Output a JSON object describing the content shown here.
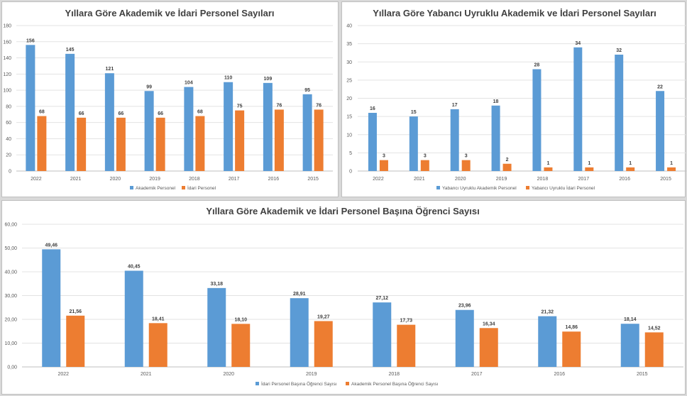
{
  "chart_data": [
    {
      "type": "bar",
      "title": "Yıllara Göre Akademik ve İdari Personel Sayıları",
      "categories": [
        "2022",
        "2021",
        "2020",
        "2019",
        "2018",
        "2017",
        "2016",
        "2015"
      ],
      "series": [
        {
          "name": "Akademik Personel",
          "color": "#5b9bd5",
          "values": [
            156,
            145,
            121,
            99,
            104,
            110,
            109,
            95
          ],
          "labels": [
            "156",
            "145",
            "121",
            "99",
            "104",
            "110",
            "109",
            "95"
          ]
        },
        {
          "name": "İdari Personel",
          "color": "#ed7d31",
          "values": [
            68,
            66,
            66,
            66,
            68,
            75,
            76,
            76
          ],
          "labels": [
            "68",
            "66",
            "66",
            "66",
            "68",
            "75",
            "76",
            "76"
          ]
        }
      ],
      "ylim": [
        0,
        180
      ],
      "yticks": [
        "0",
        "20",
        "40",
        "60",
        "80",
        "100",
        "120",
        "140",
        "160",
        "180"
      ],
      "grid": true,
      "legend": "bottom"
    },
    {
      "type": "bar",
      "title": "Yıllara Göre Yabancı Uyruklu Akademik ve İdari Personel Sayıları",
      "categories": [
        "2022",
        "2021",
        "2020",
        "2019",
        "2018",
        "2017",
        "2016",
        "2015"
      ],
      "series": [
        {
          "name": "Yabancı Uyruklu Akademik Personel",
          "color": "#5b9bd5",
          "values": [
            16,
            15,
            17,
            18,
            28,
            34,
            32,
            22
          ],
          "labels": [
            "16",
            "15",
            "17",
            "18",
            "28",
            "34",
            "32",
            "22"
          ]
        },
        {
          "name": "Yabancı Uyruklu İdari Personel",
          "color": "#ed7d31",
          "values": [
            3,
            3,
            3,
            2,
            1,
            1,
            1,
            1
          ],
          "labels": [
            "3",
            "3",
            "3",
            "2",
            "1",
            "1",
            "1",
            "1"
          ]
        }
      ],
      "ylim": [
        0,
        40
      ],
      "yticks": [
        "0",
        "5",
        "10",
        "15",
        "20",
        "25",
        "30",
        "35",
        "40"
      ],
      "grid": true,
      "legend": "bottom"
    },
    {
      "type": "bar",
      "title": "Yıllara Göre Akademik ve İdari Personel Başına Öğrenci Sayısı",
      "categories": [
        "2022",
        "2021",
        "2020",
        "2019",
        "2018",
        "2017",
        "2016",
        "2015"
      ],
      "series": [
        {
          "name": "İdari Personel Başına Öğrenci Sayısı",
          "color": "#5b9bd5",
          "values": [
            49.46,
            40.45,
            33.18,
            28.91,
            27.12,
            23.96,
            21.32,
            18.14
          ],
          "labels": [
            "49,46",
            "40,45",
            "33,18",
            "28,91",
            "27,12",
            "23,96",
            "21,32",
            "18,14"
          ]
        },
        {
          "name": "Akademik Personel Başına Öğrenci Sayısı",
          "color": "#ed7d31",
          "values": [
            21.56,
            18.41,
            18.1,
            19.27,
            17.73,
            16.34,
            14.86,
            14.52
          ],
          "labels": [
            "21,56",
            "18,41",
            "18,10",
            "19,27",
            "17,73",
            "16,34",
            "14,86",
            "14,52"
          ]
        }
      ],
      "ylim": [
        0,
        60
      ],
      "yticks": [
        "0,00",
        "10,00",
        "20,00",
        "30,00",
        "40,00",
        "50,00",
        "60,00"
      ],
      "grid": true,
      "legend": "bottom"
    }
  ]
}
